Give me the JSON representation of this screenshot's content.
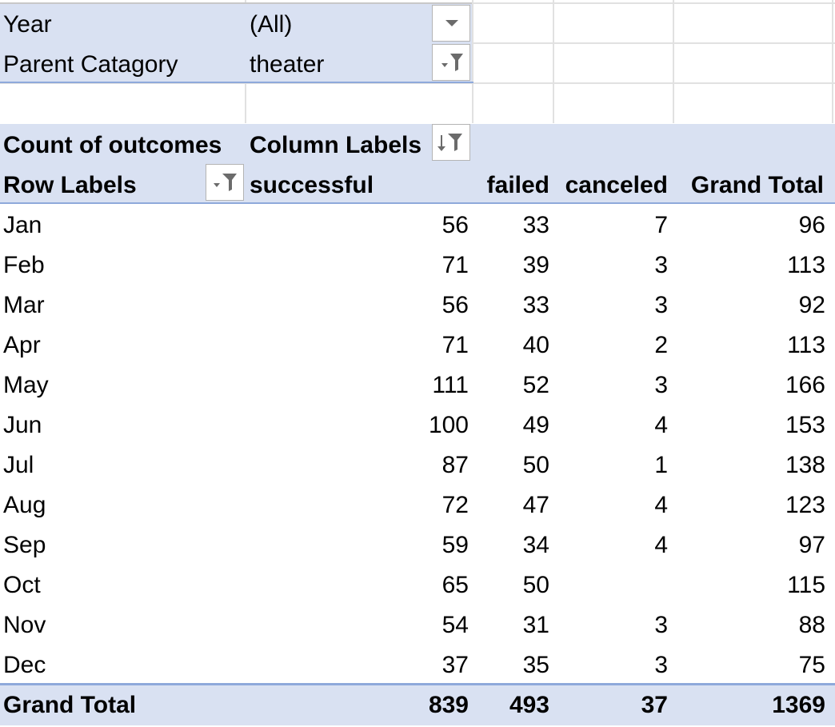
{
  "filters": [
    {
      "label": "Year",
      "value": "(All)",
      "icon": "dropdown-arrow-icon"
    },
    {
      "label": "Parent Catagory",
      "value": "theater",
      "icon": "filter-applied-icon"
    }
  ],
  "pivot": {
    "value_field": "Count of outcomes",
    "column_labels": "Column Labels",
    "row_labels": "Row Labels",
    "columns": [
      "successful",
      "failed",
      "canceled",
      "Grand Total"
    ],
    "rows": [
      {
        "label": "Jan",
        "successful": "56",
        "failed": "33",
        "canceled": "7",
        "total": "96"
      },
      {
        "label": "Feb",
        "successful": "71",
        "failed": "39",
        "canceled": "3",
        "total": "113"
      },
      {
        "label": "Mar",
        "successful": "56",
        "failed": "33",
        "canceled": "3",
        "total": "92"
      },
      {
        "label": "Apr",
        "successful": "71",
        "failed": "40",
        "canceled": "2",
        "total": "113"
      },
      {
        "label": "May",
        "successful": "111",
        "failed": "52",
        "canceled": "3",
        "total": "166"
      },
      {
        "label": "Jun",
        "successful": "100",
        "failed": "49",
        "canceled": "4",
        "total": "153"
      },
      {
        "label": "Jul",
        "successful": "87",
        "failed": "50",
        "canceled": "1",
        "total": "138"
      },
      {
        "label": "Aug",
        "successful": "72",
        "failed": "47",
        "canceled": "4",
        "total": "123"
      },
      {
        "label": "Sep",
        "successful": "59",
        "failed": "34",
        "canceled": "4",
        "total": "97"
      },
      {
        "label": "Oct",
        "successful": "65",
        "failed": "50",
        "canceled": "",
        "total": "115"
      },
      {
        "label": "Nov",
        "successful": "54",
        "failed": "31",
        "canceled": "3",
        "total": "88"
      },
      {
        "label": "Dec",
        "successful": "37",
        "failed": "35",
        "canceled": "3",
        "total": "75"
      }
    ],
    "grand_total": {
      "label": "Grand Total",
      "successful": "839",
      "failed": "493",
      "canceled": "37",
      "total": "1369"
    }
  },
  "colors": {
    "header_band": "#d9e1f2",
    "rule": "#8ea9db",
    "gridline": "#e1e1e1"
  }
}
